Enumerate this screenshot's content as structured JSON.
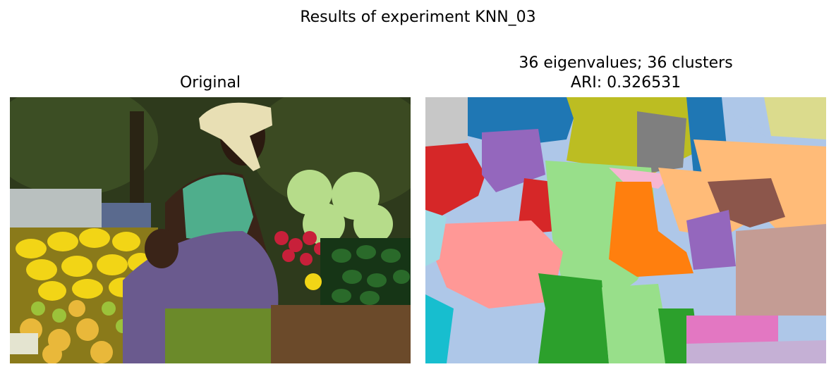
{
  "figure": {
    "suptitle": "Results of experiment KNN_03"
  },
  "chart_data": [
    {
      "type": "image",
      "title": "Original",
      "description_text": "",
      "colors": {
        "bg_dark_green": "#2e3a1c",
        "skin": "#3a2418",
        "shirt": "#4fae8c",
        "wrap": "#6a5a8e",
        "headwrap": "#e8dfb4",
        "mango": "#f2d516",
        "cabbage": "#b6dc8a",
        "cucumber": "#1f4a1e",
        "radish": "#c8203a",
        "table": "#6b4a2a"
      }
    },
    {
      "type": "heatmap",
      "title_line1": "36 eigenvalues; 36 clusters",
      "title_line2": "ARI: 0.326531",
      "n_eigenvalues": 36,
      "n_clusters": 36,
      "ari": 0.326531,
      "palette": [
        "#1f77b4",
        "#aec7e8",
        "#ff7f0e",
        "#ffbb78",
        "#2ca02c",
        "#98df8a",
        "#d62728",
        "#ff9896",
        "#9467bd",
        "#c5b0d5",
        "#8c564b",
        "#c49c94",
        "#e377c2",
        "#f7b6d2",
        "#7f7f7f",
        "#c7c7c7",
        "#bcbd22",
        "#dbdb8d",
        "#17becf",
        "#9edae5"
      ]
    }
  ]
}
